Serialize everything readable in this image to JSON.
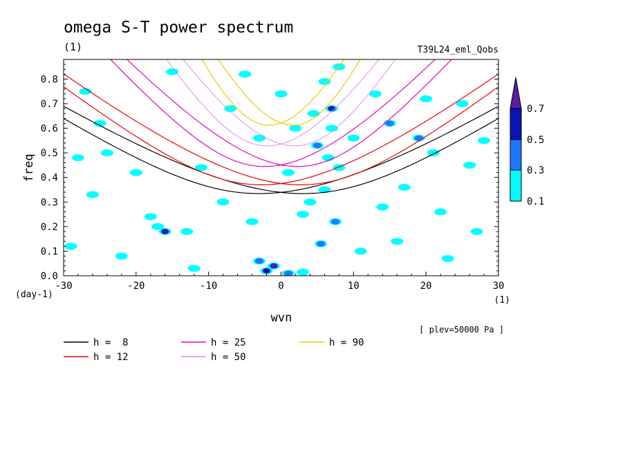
{
  "chart_data": {
    "type": "heatmap",
    "title": "omega S-T power spectrum",
    "subtitle_left": "(1)",
    "subtitle_right": "T39L24_eml_Qobs",
    "xlabel": "wvn",
    "ylabel": "freq",
    "x_unit_label": "(1)",
    "y_unit_label": "(day-1)",
    "level_note": "[ plev=50000 Pa ]",
    "xlim": [
      -30,
      30
    ],
    "ylim": [
      0,
      0.88
    ],
    "x_ticks": [
      -30,
      -20,
      -10,
      0,
      10,
      20,
      30
    ],
    "y_ticks": [
      0.0,
      0.1,
      0.2,
      0.3,
      0.4,
      0.5,
      0.6,
      0.7,
      0.8
    ],
    "colorbar": {
      "levels": [
        "0.1",
        "0.3",
        "0.5",
        "0.7"
      ],
      "colors": [
        "#00ffff",
        "#1e78ff",
        "#0a14b4",
        "#5a1ea0"
      ]
    },
    "patches": [
      {
        "x": -2,
        "y": 0.02,
        "level": 2
      },
      {
        "x": -1,
        "y": 0.04,
        "level": 3
      },
      {
        "x": -3,
        "y": 0.06,
        "level": 1
      },
      {
        "x": 1,
        "y": 0.01,
        "level": 1
      },
      {
        "x": 3,
        "y": 0.015,
        "level": 0
      },
      {
        "x": -16,
        "y": 0.18,
        "level": 2
      },
      {
        "x": -17,
        "y": 0.2,
        "level": 0
      },
      {
        "x": 7,
        "y": 0.68,
        "level": 2
      },
      {
        "x": 5,
        "y": 0.53,
        "level": 1
      },
      {
        "x": 7.5,
        "y": 0.22,
        "level": 1
      },
      {
        "x": 15,
        "y": 0.62,
        "level": 1
      },
      {
        "x": 5.5,
        "y": 0.13,
        "level": 1
      },
      {
        "x": 19,
        "y": 0.56,
        "level": 1
      },
      {
        "x": 2,
        "y": 0.6,
        "level": 0
      },
      {
        "x": 7,
        "y": 0.6,
        "level": 0
      },
      {
        "x": 6,
        "y": 0.35,
        "level": 0
      },
      {
        "x": 6.5,
        "y": 0.48,
        "level": 0
      },
      {
        "x": 8,
        "y": 0.44,
        "level": 0
      },
      {
        "x": 4,
        "y": 0.3,
        "level": 0
      },
      {
        "x": 3,
        "y": 0.25,
        "level": 0
      },
      {
        "x": -12,
        "y": 0.03,
        "level": 0
      },
      {
        "x": -18,
        "y": 0.24,
        "level": 0
      },
      {
        "x": -26,
        "y": 0.33,
        "level": 0
      },
      {
        "x": -25,
        "y": 0.62,
        "level": 0
      },
      {
        "x": -27,
        "y": 0.75,
        "level": 0
      },
      {
        "x": -5,
        "y": 0.82,
        "level": 0
      },
      {
        "x": 6,
        "y": 0.79,
        "level": 0
      },
      {
        "x": 8,
        "y": 0.85,
        "level": 0
      },
      {
        "x": -15,
        "y": 0.83,
        "level": 0
      },
      {
        "x": 13,
        "y": 0.74,
        "level": 0
      },
      {
        "x": 20,
        "y": 0.72,
        "level": 0
      },
      {
        "x": 25,
        "y": 0.7,
        "level": 0
      },
      {
        "x": 17,
        "y": 0.36,
        "level": 0
      },
      {
        "x": 22,
        "y": 0.26,
        "level": 0
      },
      {
        "x": 27,
        "y": 0.18,
        "level": 0
      },
      {
        "x": -8,
        "y": 0.3,
        "level": 0
      },
      {
        "x": -11,
        "y": 0.44,
        "level": 0
      },
      {
        "x": -20,
        "y": 0.42,
        "level": 0
      },
      {
        "x": -28,
        "y": 0.48,
        "level": 0
      },
      {
        "x": -22,
        "y": 0.08,
        "level": 0
      },
      {
        "x": -29,
        "y": 0.12,
        "level": 0
      },
      {
        "x": 11,
        "y": 0.1,
        "level": 0
      },
      {
        "x": 16,
        "y": 0.14,
        "level": 0
      },
      {
        "x": 23,
        "y": 0.07,
        "level": 0
      },
      {
        "x": 26,
        "y": 0.45,
        "level": 0
      },
      {
        "x": 28,
        "y": 0.55,
        "level": 0
      },
      {
        "x": -3,
        "y": 0.56,
        "level": 0
      },
      {
        "x": -7,
        "y": 0.68,
        "level": 0
      },
      {
        "x": 0,
        "y": 0.74,
        "level": 0
      },
      {
        "x": 10,
        "y": 0.56,
        "level": 0
      },
      {
        "x": -13,
        "y": 0.18,
        "level": 0
      },
      {
        "x": -4,
        "y": 0.22,
        "level": 0
      },
      {
        "x": 1,
        "y": 0.42,
        "level": 0
      },
      {
        "x": -24,
        "y": 0.5,
        "level": 0
      },
      {
        "x": 14,
        "y": 0.28,
        "level": 0
      },
      {
        "x": 21,
        "y": 0.5,
        "level": 0
      },
      {
        "x": 4.5,
        "y": 0.66,
        "level": 0
      }
    ],
    "series": [
      {
        "name": "h =  8",
        "h": 8,
        "color": "#000000",
        "width": 1.2
      },
      {
        "name": "h = 12",
        "h": 12,
        "color": "#e60000",
        "width": 1.2
      },
      {
        "name": "h = 25",
        "h": 25,
        "color": "#e600b4",
        "width": 1.2
      },
      {
        "name": "h = 50",
        "h": 50,
        "color": "#e08ce6",
        "width": 1.0
      },
      {
        "name": "h = 90",
        "h": 90,
        "color": "#f0c800",
        "width": 1.2
      }
    ]
  }
}
